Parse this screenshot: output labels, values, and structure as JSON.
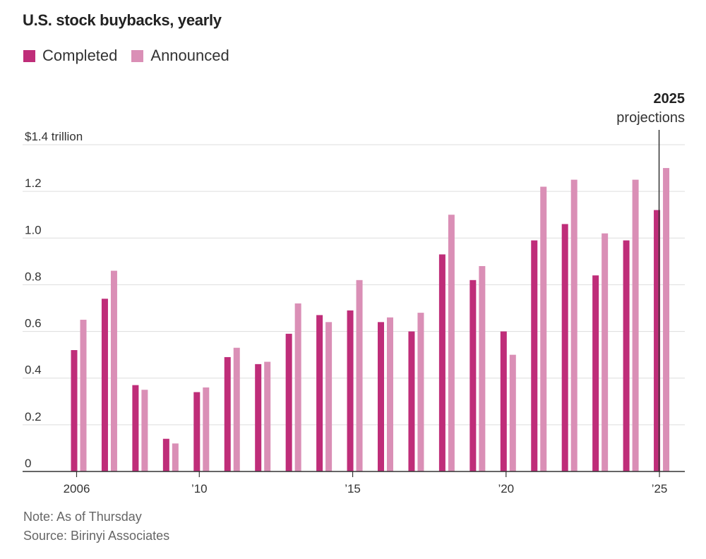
{
  "title": "U.S. stock buybacks, yearly",
  "legend": {
    "completed_label": "Completed",
    "announced_label": "Announced"
  },
  "colors": {
    "completed": "#bf2d79",
    "announced": "#da8fb6",
    "gridline": "#dddddd",
    "axis": "#333333",
    "annotation_line": "#333333"
  },
  "annotation": {
    "year": "2025",
    "text": "projections"
  },
  "footer": {
    "note": "Note: As of Thursday",
    "source": "Source: Birinyi Associates"
  },
  "chart_data": {
    "type": "bar",
    "title": "U.S. stock buybacks, yearly",
    "xlabel": "",
    "ylabel": "",
    "ylim": [
      0,
      1.4
    ],
    "grid": true,
    "legend_position": "top-left",
    "y_ticks": [
      0,
      0.2,
      0.4,
      0.6,
      0.8,
      1.0,
      1.2,
      1.4
    ],
    "y_tick_labels": [
      "0",
      "0.2",
      "0.4",
      "0.6",
      "0.8",
      "1.0",
      "1.2",
      "$1.4 trillion"
    ],
    "x_ticks": [
      {
        "year": 2006,
        "label": "2006"
      },
      {
        "year": 2010,
        "label": "’10"
      },
      {
        "year": 2015,
        "label": "’15"
      },
      {
        "year": 2020,
        "label": "’20"
      },
      {
        "year": 2025,
        "label": "’25"
      }
    ],
    "categories": [
      2006,
      2007,
      2008,
      2009,
      2010,
      2011,
      2012,
      2013,
      2014,
      2015,
      2016,
      2017,
      2018,
      2019,
      2020,
      2021,
      2022,
      2023,
      2024,
      2025
    ],
    "series": [
      {
        "name": "Completed",
        "values": [
          0.52,
          0.74,
          0.37,
          0.14,
          0.34,
          0.49,
          0.46,
          0.59,
          0.67,
          0.69,
          0.64,
          0.6,
          0.93,
          0.82,
          0.6,
          0.99,
          1.06,
          0.84,
          0.99,
          1.12
        ]
      },
      {
        "name": "Announced",
        "values": [
          0.65,
          0.86,
          0.35,
          0.12,
          0.36,
          0.53,
          0.47,
          0.72,
          0.64,
          0.82,
          0.66,
          0.68,
          1.1,
          0.88,
          0.5,
          1.22,
          1.25,
          1.02,
          1.25,
          1.3
        ]
      }
    ]
  }
}
